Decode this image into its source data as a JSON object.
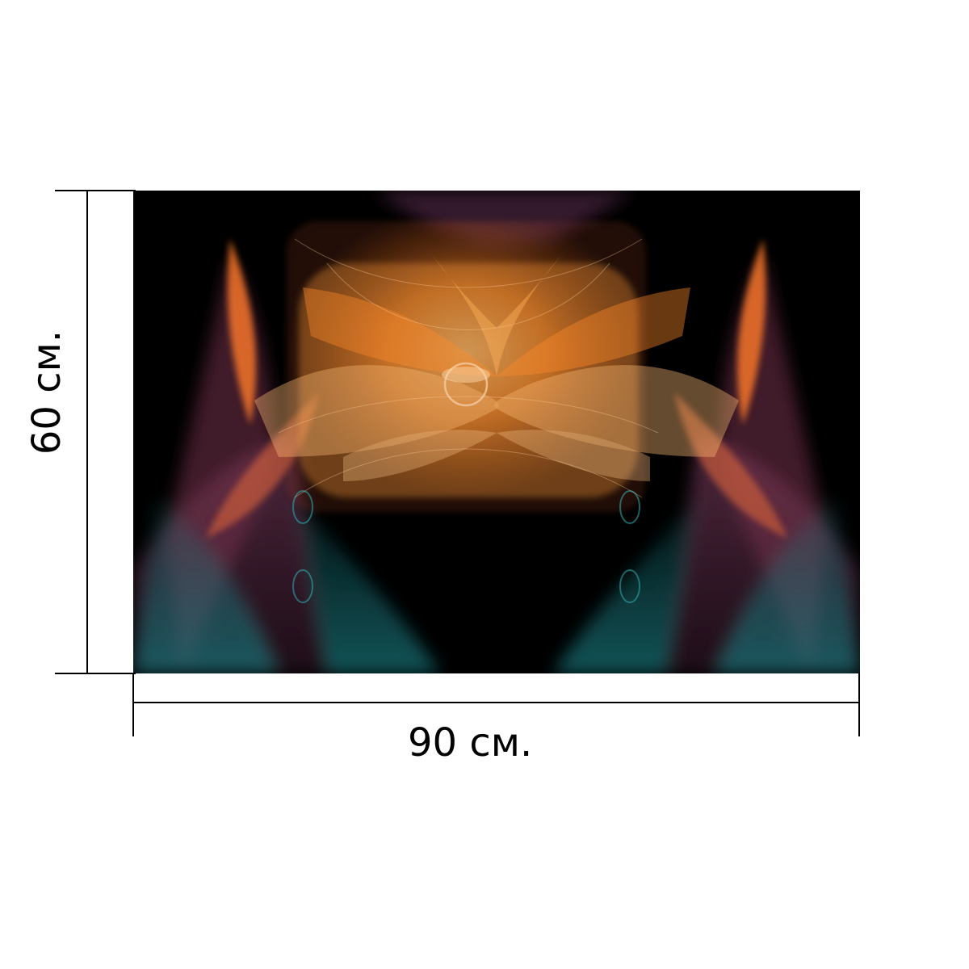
{
  "dimensions": {
    "width_label": "90 см.",
    "height_label": "60 см.",
    "width_value": 90,
    "height_value": 60,
    "unit": "см."
  },
  "artwork": {
    "background": "#000000",
    "palette": [
      "#ff8a2a",
      "#f2b06a",
      "#1f8f95",
      "#a0507a",
      "#7a3d6b"
    ],
    "dimension_line_color": "#000000"
  }
}
